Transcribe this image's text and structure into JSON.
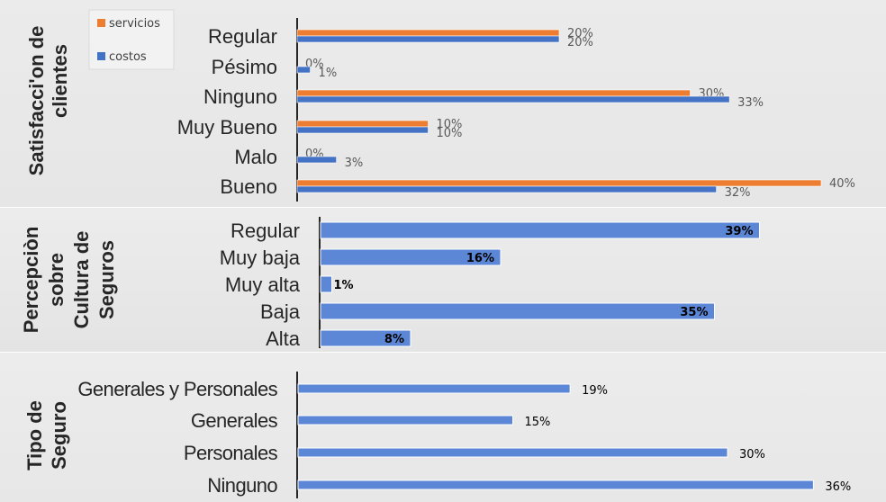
{
  "colors": {
    "servicios": "#ed7d31",
    "costos": "#4472c4",
    "bar": "#5b87d6",
    "text": "#262626",
    "label_light": "#595959"
  },
  "chart_data": [
    {
      "type": "bar",
      "orientation": "horizontal",
      "ylabel": "Satisfacci'on de clientes",
      "categories": [
        "Regular",
        "Pésimo",
        "Ninguno",
        "Muy Bueno",
        "Malo",
        "Bueno"
      ],
      "series": [
        {
          "name": "servicios",
          "values": [
            20,
            0,
            30,
            10,
            0,
            40
          ],
          "labels": [
            "20%",
            "0%",
            "30%",
            "10%",
            "0%",
            "40%"
          ]
        },
        {
          "name": "costos",
          "values": [
            20,
            1,
            33,
            10,
            3,
            32
          ],
          "labels": [
            "20%",
            "1%",
            "33%",
            "10%",
            "3%",
            "32%"
          ]
        }
      ],
      "legend": [
        "servicios",
        "costos"
      ],
      "legend_position": "top-left"
    },
    {
      "type": "bar",
      "orientation": "horizontal",
      "ylabel": "Percepciòn sobre Cultura de Seguros",
      "categories": [
        "Regular",
        "Muy baja",
        "Muy alta",
        "Baja",
        "Alta"
      ],
      "values": [
        39,
        16,
        1,
        35,
        8
      ],
      "labels": [
        "39%",
        "16%",
        "1%",
        "35%",
        "8%"
      ]
    },
    {
      "type": "bar",
      "orientation": "horizontal",
      "ylabel": "Tipo de Seguro",
      "categories": [
        "Generales y Personales",
        "Generales",
        "Personales",
        "Ninguno"
      ],
      "values": [
        19,
        15,
        30,
        36
      ],
      "labels": [
        "19%",
        "15%",
        "30%",
        "36%"
      ]
    }
  ]
}
